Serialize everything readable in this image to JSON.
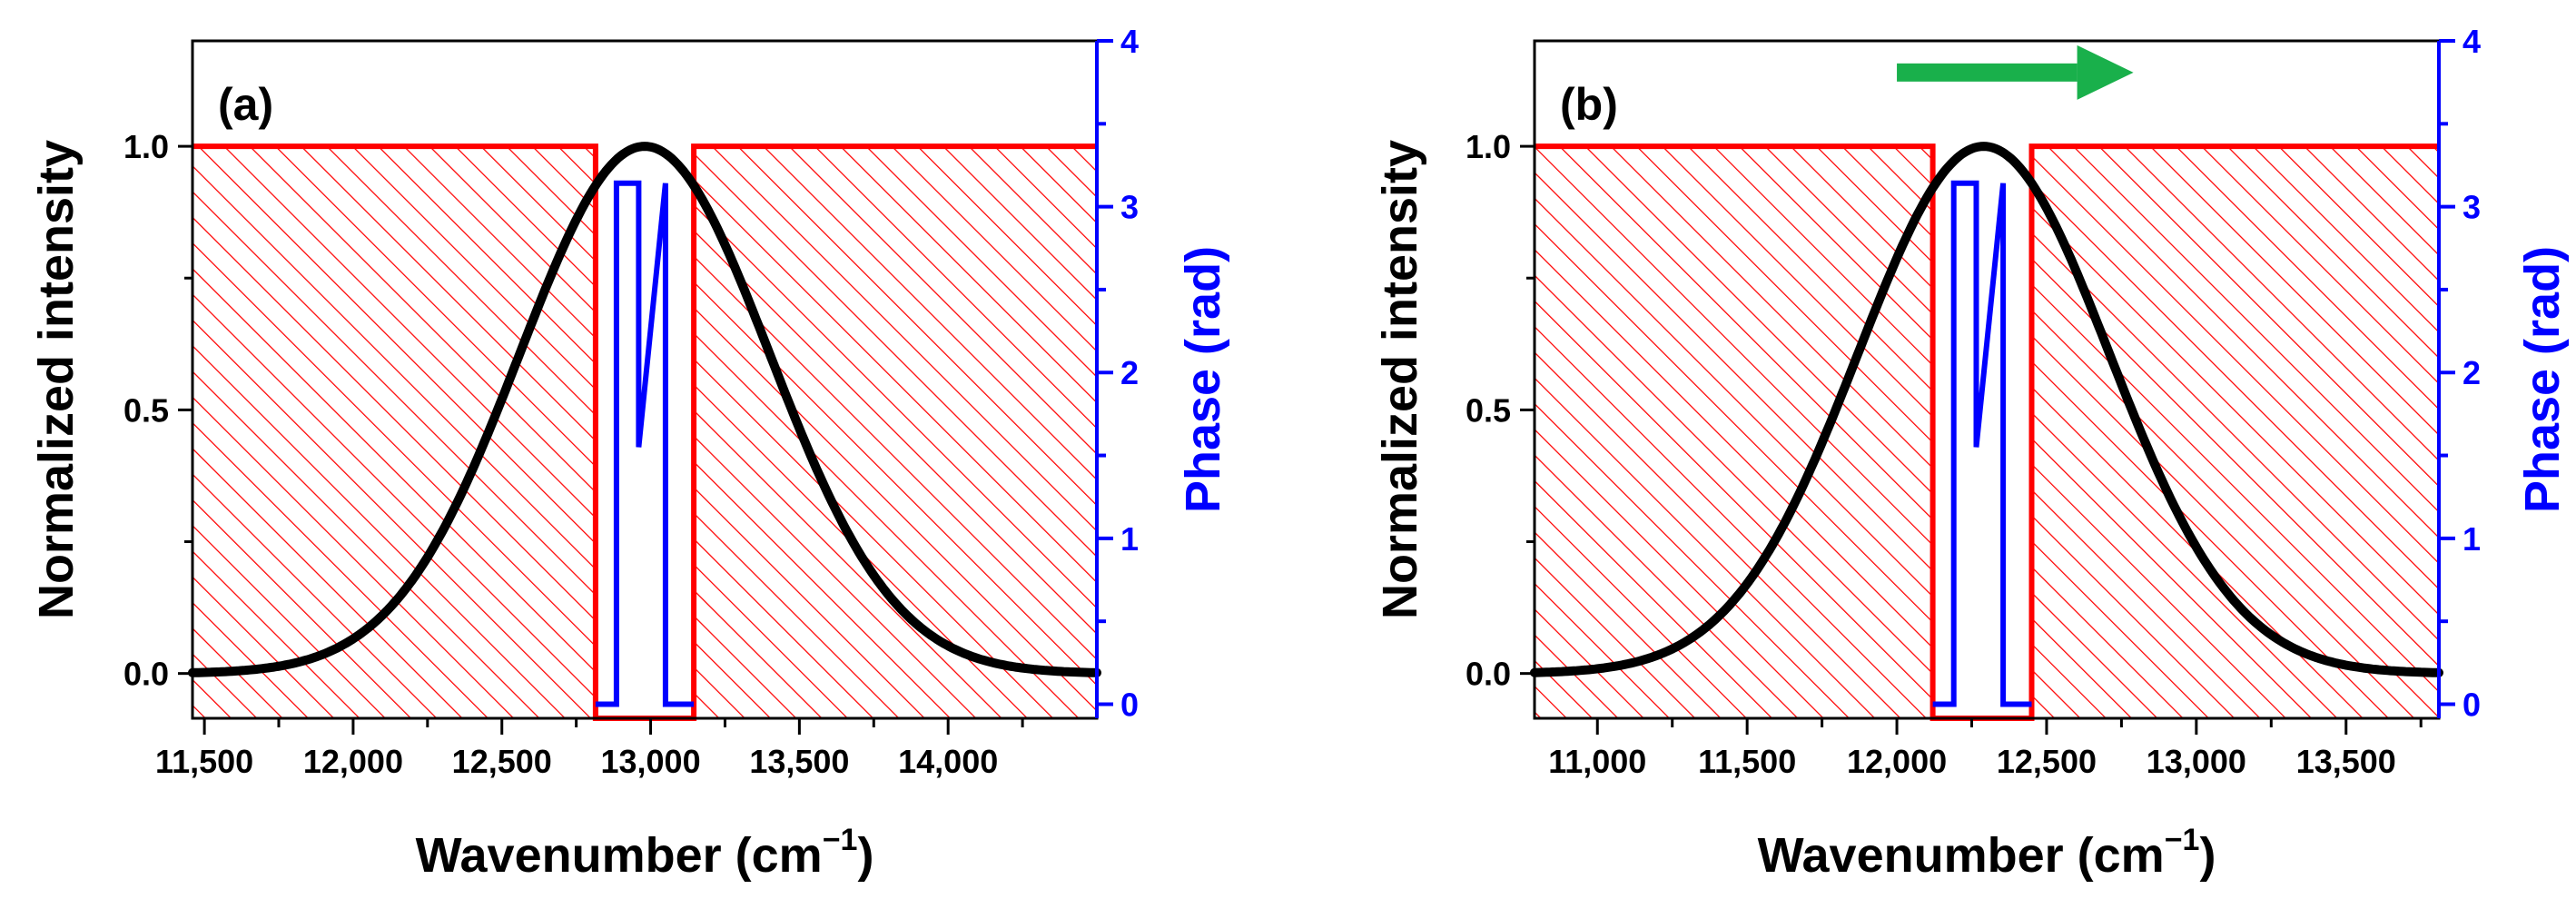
{
  "figure": {
    "colors": {
      "intensity": "#000000",
      "mask": "#ff0000",
      "phase": "#0000ff",
      "arrow": "#19b04b",
      "axis": "#000000"
    }
  },
  "chart_data": [
    {
      "type": "line",
      "panel_label": "(a)",
      "xlabel": "Wavenumber (cm",
      "xlabel_sup": "−1",
      "xlabel_close": ")",
      "ylabel": "Normalized intensity",
      "y2label": "Phase (rad)",
      "xlim": [
        11460,
        14500
      ],
      "ylim": [
        -0.085,
        1.2
      ],
      "y2lim": [
        -0.085,
        4
      ],
      "x_ticks": [
        11500,
        12000,
        12500,
        13000,
        13500,
        14000
      ],
      "x_tick_labels": [
        "11,500",
        "12,000",
        "12,500",
        "13,000",
        "13,500",
        "14,000"
      ],
      "y_ticks": [
        0.0,
        0.5,
        1.0
      ],
      "y_tick_labels": [
        "0.0",
        "0.5",
        "1.0"
      ],
      "y2_ticks": [
        0,
        1,
        2,
        3,
        4
      ],
      "y2_tick_labels": [
        "0",
        "1",
        "2",
        "3",
        "4"
      ],
      "series": [
        {
          "name": "Normalized intensity",
          "axis": "left",
          "shape": "gaussian",
          "center": 12980,
          "sigma": 420,
          "amplitude": 1.0
        },
        {
          "name": "Amplitude mask",
          "axis": "left",
          "x": [
            11460,
            12815,
            12815,
            13145,
            13145,
            14500
          ],
          "y": [
            1.0,
            1.0,
            -0.085,
            -0.085,
            1.0,
            1.0
          ]
        },
        {
          "name": "Phase",
          "axis": "right",
          "x": [
            12815,
            12885,
            12885,
            12960,
            12960,
            13050,
            13050,
            13145
          ],
          "y": [
            0,
            0,
            3.1416,
            3.1416,
            1.55,
            3.1416,
            0,
            0
          ]
        }
      ],
      "masked_regions": [
        [
          11460,
          12815
        ],
        [
          13145,
          14500
        ]
      ],
      "arrow": null
    },
    {
      "type": "line",
      "panel_label": "(b)",
      "xlabel": "Wavenumber (cm",
      "xlabel_sup": "−1",
      "xlabel_close": ")",
      "ylabel": "Normalized intensity",
      "y2label": "Phase (rad)",
      "xlim": [
        10790,
        13810
      ],
      "ylim": [
        -0.085,
        1.2
      ],
      "y2lim": [
        -0.085,
        4
      ],
      "x_ticks": [
        11000,
        11500,
        12000,
        12500,
        13000,
        13500
      ],
      "x_tick_labels": [
        "11,000",
        "11,500",
        "12,000",
        "12,500",
        "13,000",
        "13,500"
      ],
      "y_ticks": [
        0.0,
        0.5,
        1.0
      ],
      "y_tick_labels": [
        "0.0",
        "0.5",
        "1.0"
      ],
      "y2_ticks": [
        0,
        1,
        2,
        3,
        4
      ],
      "y2_tick_labels": [
        "0",
        "1",
        "2",
        "3",
        "4"
      ],
      "series": [
        {
          "name": "Normalized intensity",
          "axis": "left",
          "shape": "gaussian",
          "center": 12290,
          "sigma": 420,
          "amplitude": 1.0
        },
        {
          "name": "Amplitude mask",
          "axis": "left",
          "x": [
            10790,
            12120,
            12120,
            12450,
            12450,
            13810
          ],
          "y": [
            1.0,
            1.0,
            -0.085,
            -0.085,
            1.0,
            1.0
          ]
        },
        {
          "name": "Phase",
          "axis": "right",
          "x": [
            12120,
            12190,
            12190,
            12265,
            12265,
            12355,
            12355,
            12450
          ],
          "y": [
            0,
            0,
            3.1416,
            3.1416,
            1.55,
            3.1416,
            0,
            0
          ]
        }
      ],
      "masked_regions": [
        [
          10790,
          12120
        ],
        [
          12450,
          13810
        ]
      ],
      "arrow": {
        "direction": "right",
        "from_x": 12000,
        "to_x": 12790,
        "y": 1.14
      }
    }
  ]
}
